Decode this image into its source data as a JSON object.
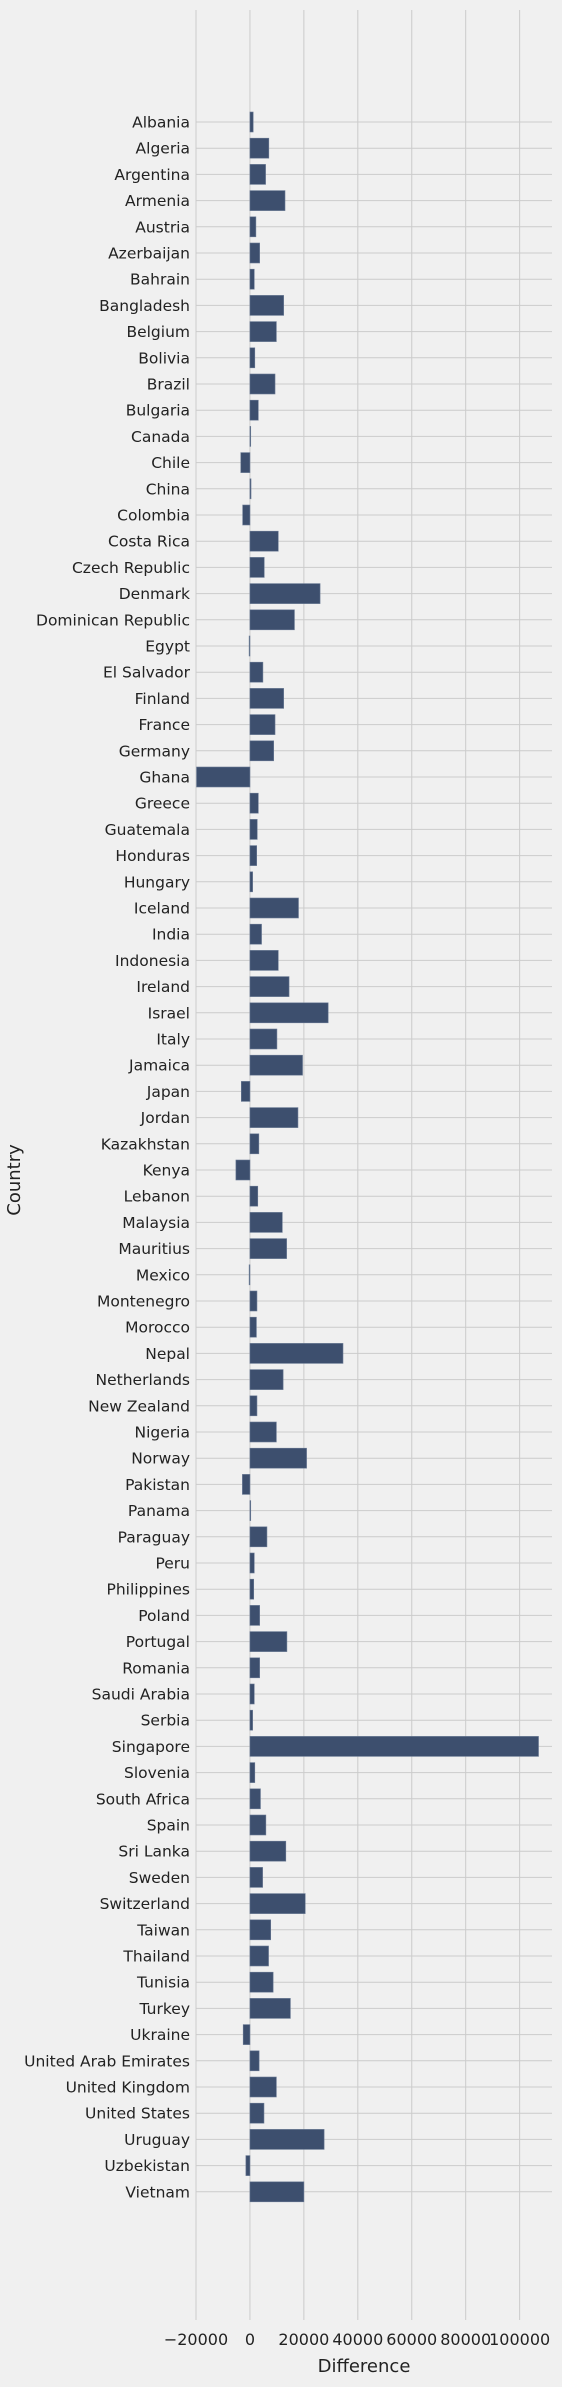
{
  "chart_data": {
    "type": "bar",
    "orientation": "horizontal",
    "title": "",
    "xlabel": "Difference",
    "ylabel": "Country",
    "xlim": [
      -20000,
      112000
    ],
    "xticks": [
      -20000,
      0,
      20000,
      40000,
      60000,
      80000,
      100000
    ],
    "xtick_labels": [
      "−20000",
      "0",
      "20000",
      "40000",
      "60000",
      "80000",
      "100000"
    ],
    "grid": true,
    "bar_color": "#3d4f6e",
    "background_color": "#f0f0f0",
    "grid_color": "#cbcbcb",
    "categories": [
      "Albania",
      "Algeria",
      "Argentina",
      "Armenia",
      "Austria",
      "Azerbaijan",
      "Bahrain",
      "Bangladesh",
      "Belgium",
      "Bolivia",
      "Brazil",
      "Bulgaria",
      "Canada",
      "Chile",
      "China",
      "Colombia",
      "Costa Rica",
      "Czech Republic",
      "Denmark",
      "Dominican Republic",
      "Egypt",
      "El Salvador",
      "Finland",
      "France",
      "Germany",
      "Ghana",
      "Greece",
      "Guatemala",
      "Honduras",
      "Hungary",
      "Iceland",
      "India",
      "Indonesia",
      "Ireland",
      "Israel",
      "Italy",
      "Jamaica",
      "Japan",
      "Jordan",
      "Kazakhstan",
      "Kenya",
      "Lebanon",
      "Malaysia",
      "Mauritius",
      "Mexico",
      "Montenegro",
      "Morocco",
      "Nepal",
      "Netherlands",
      "New Zealand",
      "Nigeria",
      "Norway",
      "Pakistan",
      "Panama",
      "Paraguay",
      "Peru",
      "Philippines",
      "Poland",
      "Portugal",
      "Romania",
      "Saudi Arabia",
      "Serbia",
      "Singapore",
      "Slovenia",
      "South Africa",
      "Spain",
      "Sri Lanka",
      "Sweden",
      "Switzerland",
      "Taiwan",
      "Thailand",
      "Tunisia",
      "Turkey",
      "Ukraine",
      "United Arab Emirates",
      "United Kingdom",
      "United States",
      "Uruguay",
      "Uzbekistan",
      "Vietnam"
    ],
    "values": [
      1200,
      7000,
      5800,
      13000,
      2200,
      3600,
      1600,
      12500,
      9800,
      1800,
      9300,
      3100,
      0,
      -3400,
      400,
      -2700,
      10500,
      5300,
      26000,
      16500,
      -300,
      4800,
      12500,
      9300,
      8800,
      -19800,
      3100,
      2700,
      2500,
      1000,
      18000,
      4300,
      10500,
      14500,
      29000,
      10000,
      19500,
      -3200,
      17800,
      3300,
      -5200,
      2900,
      12000,
      13600,
      -300,
      2600,
      2400,
      34500,
      12300,
      2600,
      9800,
      21000,
      -2800,
      300,
      6300,
      1600,
      1400,
      3600,
      13700,
      3600,
      1600,
      1000,
      107000,
      1800,
      3900,
      5900,
      13300,
      4700,
      20500,
      7700,
      6900,
      8600,
      15000,
      -2500,
      3400,
      9800,
      5200,
      27500,
      -1500,
      20000
    ]
  }
}
